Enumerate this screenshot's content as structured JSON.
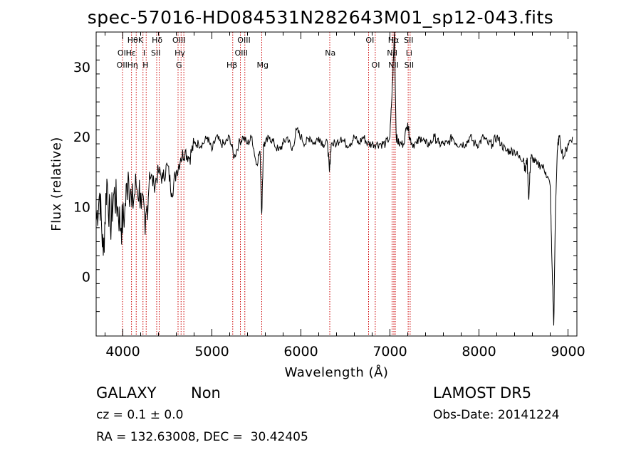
{
  "chart_data": {
    "type": "line",
    "title": "spec-57016-HD084531N282643M01_sp12-043.fits",
    "xlabel": "Wavelength (Å)",
    "ylabel": "Flux (relative)",
    "xlim": [
      3700,
      9100
    ],
    "ylim": [
      -8.5,
      35
    ],
    "xticks": [
      4000,
      5000,
      6000,
      7000,
      8000,
      9000
    ],
    "yticks": [
      0,
      10,
      20,
      30
    ],
    "line_color": "#000000",
    "marker_color": "#cc0000",
    "series": [
      {
        "x": [
          3700,
          3740,
          3780,
          3820,
          3860,
          3900,
          3940,
          3980,
          4020,
          4060,
          4100,
          4150,
          4200,
          4250,
          4300,
          4350,
          4400,
          4450,
          4500,
          4550,
          4600,
          4650,
          4700,
          4750,
          4800,
          4850,
          4900,
          4950,
          5000,
          5050,
          5100,
          5150,
          5200,
          5250,
          5300,
          5350,
          5400,
          5450,
          5500,
          5540,
          5560,
          5580,
          5600,
          5650,
          5700,
          5750,
          5800,
          5850,
          5900,
          5950,
          6000,
          6050,
          6100,
          6150,
          6200,
          6250,
          6300,
          6320,
          6340,
          6400,
          6450,
          6500,
          6550,
          6600,
          6650,
          6700,
          6750,
          6800,
          6850,
          6900,
          6950,
          7000,
          7030,
          7050,
          7070,
          7100,
          7150,
          7200,
          7220,
          7250,
          7300,
          7350,
          7400,
          7450,
          7500,
          7550,
          7600,
          7650,
          7700,
          7750,
          7800,
          7850,
          7900,
          7950,
          8000,
          8050,
          8100,
          8150,
          8200,
          8250,
          8300,
          8350,
          8400,
          8450,
          8500,
          8520,
          8540,
          8560,
          8580,
          8600,
          8650,
          8700,
          8750,
          8800,
          8820,
          8840,
          8860,
          8880,
          8900,
          8950,
          9000,
          9050
        ],
        "y": [
          8,
          12,
          3,
          14,
          7,
          12,
          10,
          7,
          9,
          15,
          10,
          13,
          12,
          6,
          15,
          13,
          15,
          14,
          16,
          12,
          15,
          17,
          18,
          17,
          19,
          19,
          19,
          20,
          18,
          20,
          19,
          19,
          20,
          17,
          19,
          20,
          19,
          20,
          16,
          18,
          9,
          19,
          19,
          20,
          19,
          18,
          19,
          20,
          18,
          21,
          20,
          19,
          20,
          19,
          20,
          19,
          19,
          15,
          19,
          19,
          20,
          19,
          19,
          20,
          19,
          20,
          19,
          19,
          19,
          19,
          19,
          20,
          28,
          35,
          20,
          19,
          19,
          22,
          20,
          19,
          19,
          20,
          19,
          19,
          20,
          19,
          19,
          19,
          20,
          19,
          19,
          19,
          20,
          19,
          19,
          20,
          19,
          19,
          20,
          19,
          18,
          18,
          18,
          17,
          17,
          15,
          17,
          11,
          17,
          17,
          16,
          16,
          15,
          13,
          2,
          -7,
          10,
          18,
          20,
          17,
          19,
          20
        ]
      }
    ],
    "line_markers": [
      {
        "x": 3997,
        "labels": [
          "OII"
        ]
      },
      {
        "x": 4097,
        "labels": [
          "Hδ",
          "Hε"
        ]
      },
      {
        "x": 4150,
        "labels": [
          "Hγ"
        ]
      },
      {
        "x": 4226,
        "labels": [
          "K"
        ]
      },
      {
        "x": 4262,
        "labels": [
          "H"
        ]
      },
      {
        "x": 4380,
        "labels": [
          "Hδ"
        ]
      },
      {
        "x": 4408,
        "labels": [
          "SII"
        ]
      },
      {
        "x": 4620,
        "labels": [
          "OIII"
        ]
      },
      {
        "x": 4654,
        "labels": [
          "Hγ"
        ]
      },
      {
        "x": 4685,
        "labels": [
          "G"
        ]
      },
      {
        "x": 5234,
        "labels": [
          "Hβ"
        ]
      },
      {
        "x": 5320,
        "labels": [
          "OIII"
        ]
      },
      {
        "x": 5370,
        "labels": [
          "OIII"
        ]
      },
      {
        "x": 5560,
        "labels": [
          "Mg"
        ]
      },
      {
        "x": 6324,
        "labels": [
          "Na"
        ]
      },
      {
        "x": 6760,
        "labels": [
          "OI"
        ]
      },
      {
        "x": 6835,
        "labels": [
          "OI"
        ]
      },
      {
        "x": 7024,
        "labels": [
          "NII"
        ]
      },
      {
        "x": 7044,
        "labels": [
          "Hα",
          "NII"
        ]
      },
      {
        "x": 7060,
        "labels": []
      },
      {
        "x": 7205,
        "labels": [
          "SII",
          "Li"
        ]
      },
      {
        "x": 7227,
        "labels": [
          "SII"
        ]
      }
    ],
    "marker_text": [
      {
        "text": "Hθ",
        "x": 4110,
        "row": 0
      },
      {
        "text": "K",
        "x": 4200,
        "row": 0
      },
      {
        "text": "Hδ",
        "x": 4385,
        "row": 0
      },
      {
        "text": "OIII",
        "x": 4630,
        "row": 0
      },
      {
        "text": "OIII",
        "x": 5360,
        "row": 0
      },
      {
        "text": "OI",
        "x": 6775,
        "row": 0
      },
      {
        "text": "Hα",
        "x": 7040,
        "row": 0
      },
      {
        "text": "SII",
        "x": 7210,
        "row": 0
      },
      {
        "text": "OII",
        "x": 4000,
        "row": 1
      },
      {
        "text": "Hε",
        "x": 4090,
        "row": 1
      },
      {
        "text": "I",
        "x": 4240,
        "row": 1
      },
      {
        "text": "SII",
        "x": 4370,
        "row": 1
      },
      {
        "text": "Hγ",
        "x": 4640,
        "row": 1
      },
      {
        "text": "OIII",
        "x": 5330,
        "row": 1
      },
      {
        "text": "Na",
        "x": 6330,
        "row": 1
      },
      {
        "text": "NII",
        "x": 7025,
        "row": 1
      },
      {
        "text": "Li",
        "x": 7215,
        "row": 1
      },
      {
        "text": "OII",
        "x": 3990,
        "row": 2
      },
      {
        "text": "Hη",
        "x": 4110,
        "row": 2
      },
      {
        "text": "H",
        "x": 4255,
        "row": 2
      },
      {
        "text": "G",
        "x": 4630,
        "row": 2
      },
      {
        "text": "Hβ",
        "x": 5225,
        "row": 2
      },
      {
        "text": "Mg",
        "x": 5570,
        "row": 2
      },
      {
        "text": "OI",
        "x": 6840,
        "row": 2
      },
      {
        "text": "NII",
        "x": 7040,
        "row": 2
      },
      {
        "text": "SII",
        "x": 7215,
        "row": 2
      }
    ]
  },
  "info": {
    "class": "GALAXY",
    "subclass": "Non",
    "survey": "LAMOST DR5",
    "cz": "cz = 0.1 ± 0.0",
    "obs_date": "Obs-Date: 20141224",
    "radec": "RA = 132.63008, DEC =  30.42405"
  }
}
